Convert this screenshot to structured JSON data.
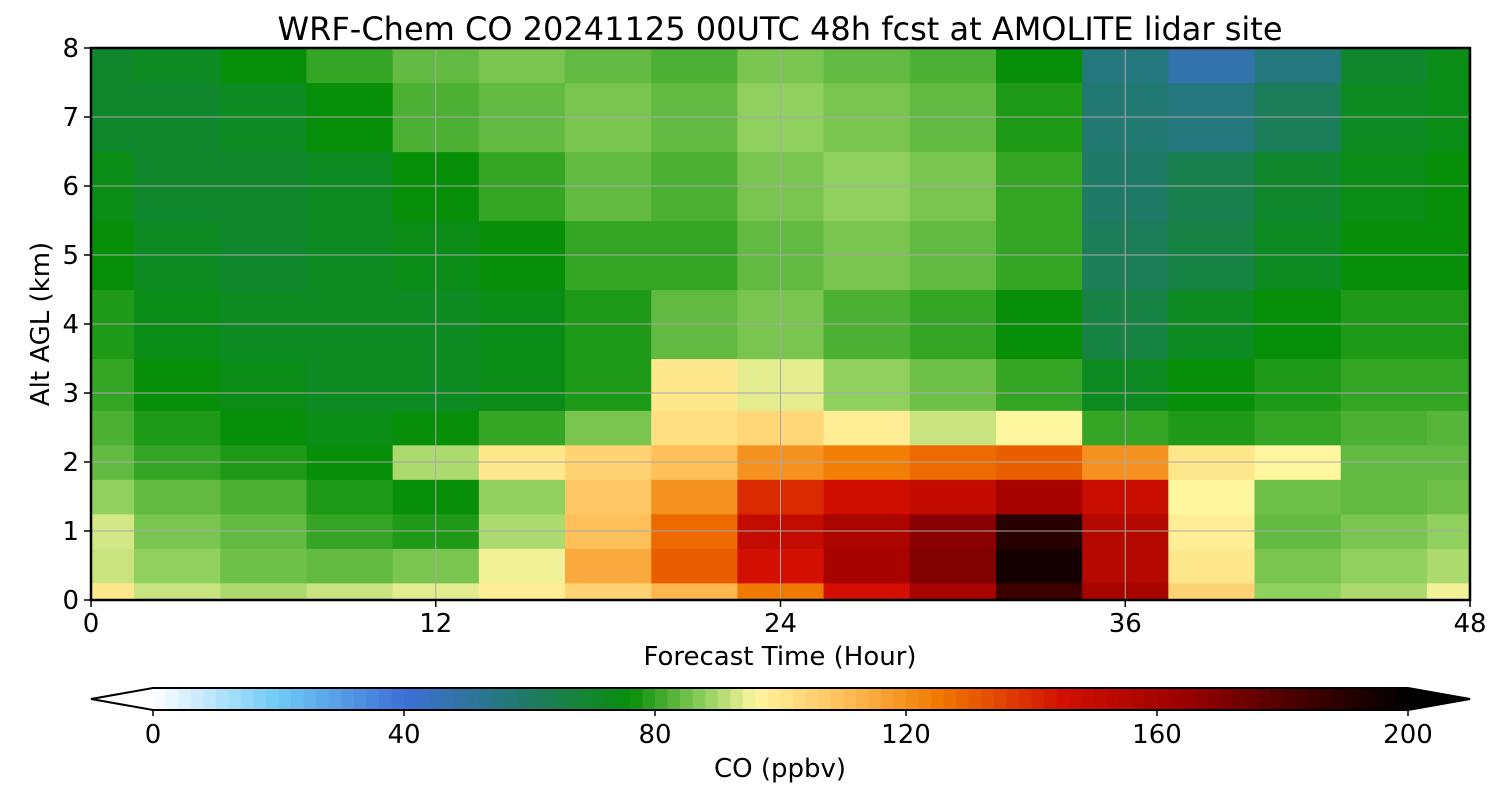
{
  "chart_data": {
    "type": "heatmap",
    "title": "WRF-Chem CO  20241125 00UTC 48h fcst at AMOLITE lidar site",
    "xlabel": "Forecast Time (Hour)",
    "ylabel": "Alt AGL (km)",
    "xlim": [
      0,
      48
    ],
    "ylim": [
      0,
      8
    ],
    "xticks": [
      0,
      12,
      24,
      36,
      48
    ],
    "yticks": [
      0,
      1,
      2,
      3,
      4,
      5,
      6,
      7,
      8
    ],
    "grid": true,
    "z_units": "ppbv",
    "x": [
      0,
      3,
      6,
      9,
      12,
      15,
      18,
      21,
      24,
      27,
      30,
      33,
      36,
      39,
      42,
      45,
      48
    ],
    "y": [
      0,
      0.5,
      1,
      1.5,
      2,
      2.5,
      3,
      4,
      5,
      6,
      7,
      8
    ],
    "z": [
      [
        100,
        92,
        90,
        92,
        94,
        98,
        105,
        112,
        125,
        145,
        160,
        185,
        160,
        105,
        88,
        90,
        95
      ],
      [
        92,
        88,
        85,
        84,
        86,
        95,
        115,
        130,
        145,
        160,
        170,
        195,
        155,
        100,
        86,
        88,
        90
      ],
      [
        93,
        86,
        84,
        80,
        78,
        90,
        110,
        128,
        150,
        158,
        168,
        190,
        155,
        98,
        84,
        86,
        88
      ],
      [
        88,
        84,
        82,
        78,
        76,
        88,
        108,
        120,
        140,
        146,
        150,
        160,
        148,
        96,
        85,
        84,
        85
      ],
      [
        84,
        80,
        78,
        76,
        90,
        100,
        105,
        110,
        120,
        124,
        128,
        130,
        120,
        100,
        96,
        84,
        84
      ],
      [
        82,
        78,
        76,
        74,
        76,
        80,
        86,
        102,
        104,
        98,
        92,
        96,
        80,
        78,
        80,
        82,
        83
      ],
      [
        80,
        76,
        74,
        72,
        72,
        74,
        78,
        100,
        94,
        88,
        85,
        80,
        72,
        76,
        78,
        80,
        80
      ],
      [
        78,
        74,
        72,
        72,
        72,
        74,
        78,
        84,
        86,
        82,
        80,
        76,
        66,
        72,
        76,
        78,
        78
      ],
      [
        76,
        72,
        70,
        72,
        74,
        76,
        80,
        80,
        84,
        86,
        84,
        80,
        62,
        66,
        72,
        76,
        76
      ],
      [
        74,
        70,
        70,
        72,
        76,
        80,
        84,
        82,
        86,
        88,
        86,
        80,
        60,
        64,
        70,
        74,
        76
      ],
      [
        70,
        70,
        72,
        76,
        82,
        84,
        86,
        84,
        88,
        86,
        84,
        78,
        58,
        56,
        62,
        72,
        74
      ],
      [
        70,
        72,
        76,
        80,
        84,
        86,
        84,
        82,
        86,
        84,
        82,
        76,
        56,
        48,
        56,
        70,
        74
      ]
    ],
    "colorbar": {
      "label": "CO  (ppbv)",
      "min": 0,
      "max": 200,
      "ticks": [
        0,
        40,
        80,
        120,
        160,
        200
      ],
      "extend": "both",
      "orientation": "horizontal",
      "stops": [
        {
          "v": 0,
          "c": "#ffffff"
        },
        {
          "v": 20,
          "c": "#6ec9f5"
        },
        {
          "v": 40,
          "c": "#3d6fd8"
        },
        {
          "v": 60,
          "c": "#1f7a66"
        },
        {
          "v": 76,
          "c": "#078f0a"
        },
        {
          "v": 88,
          "c": "#90d05e"
        },
        {
          "v": 96,
          "c": "#fff6a0"
        },
        {
          "v": 110,
          "c": "#ffc05a"
        },
        {
          "v": 125,
          "c": "#f07a00"
        },
        {
          "v": 145,
          "c": "#d20f00"
        },
        {
          "v": 165,
          "c": "#980000"
        },
        {
          "v": 185,
          "c": "#3c0000"
        },
        {
          "v": 200,
          "c": "#000000"
        }
      ]
    }
  }
}
